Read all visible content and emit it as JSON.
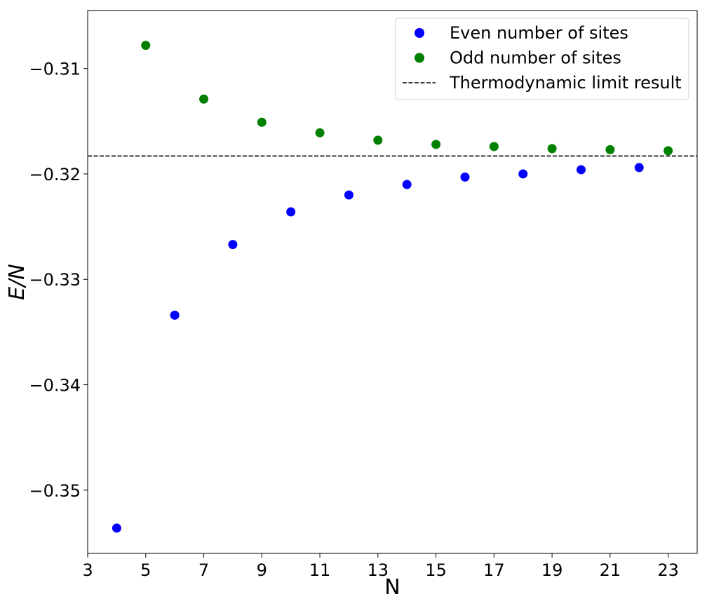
{
  "chart_data": {
    "type": "scatter",
    "title": "",
    "xlabel": "N",
    "ylabel": "E/N",
    "xlim": [
      3,
      24
    ],
    "ylim": [
      -0.356,
      -0.3045
    ],
    "xticks": [
      3,
      5,
      7,
      9,
      11,
      13,
      15,
      17,
      19,
      21,
      23
    ],
    "xtick_labels": [
      "3",
      "5",
      "7",
      "9",
      "11",
      "13",
      "15",
      "17",
      "19",
      "21",
      "23"
    ],
    "yticks": [
      -0.35,
      -0.34,
      -0.33,
      -0.32,
      -0.31
    ],
    "ytick_labels": [
      "−0.35",
      "−0.34",
      "−0.33",
      "−0.32",
      "−0.31"
    ],
    "grid": false,
    "legend_position": "top-right",
    "series": [
      {
        "name": "Even number of sites",
        "color": "#0000ff",
        "marker": "circle",
        "x": [
          4,
          6,
          8,
          10,
          12,
          14,
          16,
          18,
          20,
          22
        ],
        "y": [
          -0.3536,
          -0.3334,
          -0.3267,
          -0.3236,
          -0.322,
          -0.321,
          -0.3203,
          -0.32,
          -0.3196,
          -0.3194
        ]
      },
      {
        "name": "Odd number of sites",
        "color": "#008000",
        "marker": "circle",
        "x": [
          5,
          7,
          9,
          11,
          13,
          15,
          17,
          19,
          21,
          23
        ],
        "y": [
          -0.3078,
          -0.3129,
          -0.3151,
          -0.3161,
          -0.3168,
          -0.3172,
          -0.3174,
          -0.3176,
          -0.3177,
          -0.3178
        ]
      }
    ],
    "reference_lines": [
      {
        "name": "Thermodynamic limit result",
        "orientation": "horizontal",
        "y": -0.3183,
        "color": "#000000",
        "style": "dashed"
      }
    ]
  }
}
